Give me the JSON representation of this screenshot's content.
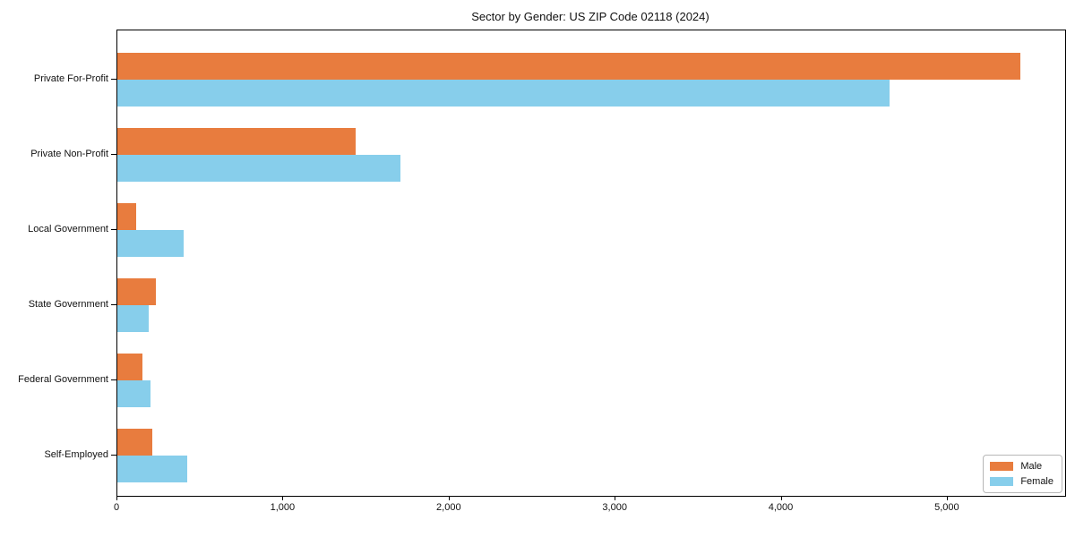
{
  "chart_data": {
    "type": "bar",
    "orientation": "horizontal",
    "title": "Sector by Gender: US ZIP Code 02118 (2024)",
    "categories": [
      "Private For-Profit",
      "Private Non-Profit",
      "Local Government",
      "State Government",
      "Federal Government",
      "Self-Employed"
    ],
    "series": [
      {
        "name": "Male",
        "color": "#e87c3e",
        "values": [
          5435,
          1435,
          113,
          234,
          153,
          212
        ]
      },
      {
        "name": "Female",
        "color": "#87ceeb",
        "values": [
          4650,
          1705,
          400,
          189,
          198,
          423
        ]
      }
    ],
    "xlabel": "",
    "ylabel": "",
    "xlim": [
      0,
      5707
    ],
    "xticks": [
      0,
      1000,
      2000,
      3000,
      4000,
      5000
    ],
    "xtick_labels": [
      "0",
      "1,000",
      "2,000",
      "3,000",
      "4,000",
      "5,000"
    ],
    "grid": false,
    "legend_position": "lower right",
    "colors": {
      "male": "#e87c3e",
      "female": "#87ceeb",
      "axis": "#000000",
      "background": "#ffffff"
    }
  }
}
